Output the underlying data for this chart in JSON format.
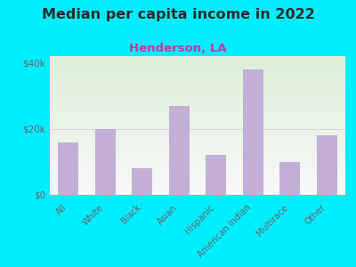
{
  "title": "Median per capita income in 2022",
  "subtitle": "Henderson, LA",
  "categories": [
    "All",
    "White",
    "Black",
    "Asian",
    "Hispanic",
    "American Indian",
    "Multirace",
    "Other"
  ],
  "values": [
    16000,
    20000,
    8000,
    27000,
    12000,
    38000,
    10000,
    18000
  ],
  "bar_color": "#c4afd8",
  "title_fontsize": 11.5,
  "subtitle_fontsize": 9.5,
  "subtitle_color": "#cc3399",
  "background_color": "#00eeff",
  "plot_bg_top": "#ddf0d8",
  "plot_bg_bottom": "#f8f8f8",
  "ytick_labels": [
    "$0",
    "$20k",
    "$40k"
  ],
  "ytick_values": [
    0,
    20000,
    40000
  ],
  "ylim": [
    0,
    42000
  ],
  "tick_label_color": "#666666"
}
